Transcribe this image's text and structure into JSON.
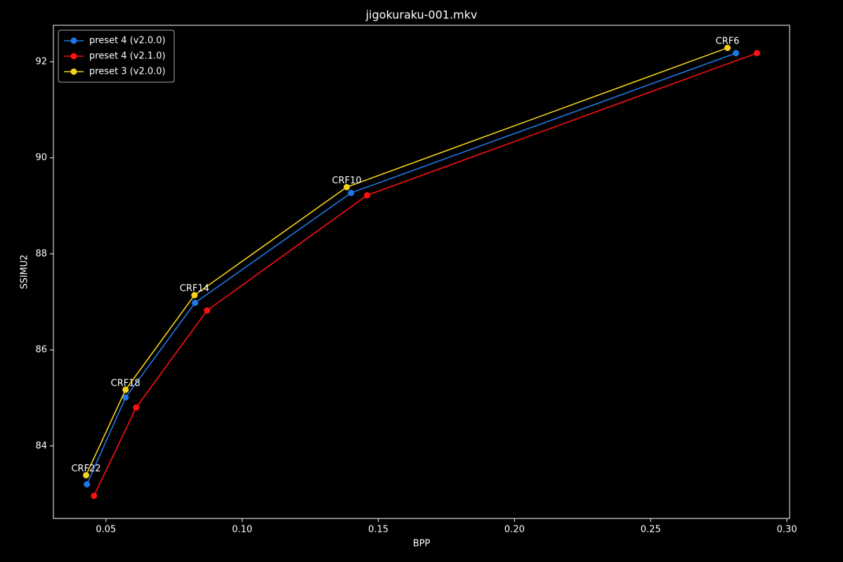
{
  "chart_data": {
    "type": "line",
    "title": "jigokuraku-001.mkv",
    "x_label": "BPP",
    "y_label": "SSIMU2",
    "series": [
      {
        "name": "preset 4 (v2.0.0)",
        "color": "#1f77e6",
        "x": [
          0.043,
          0.0572,
          0.0827,
          0.14,
          0.2813
        ],
        "values": [
          83.2,
          85.01,
          86.98,
          89.27,
          92.18
        ]
      },
      {
        "name": "preset 4 (v2.1.0)",
        "color": "#ff1010",
        "x": [
          0.0456,
          0.0611,
          0.0871,
          0.1459,
          0.289
        ],
        "values": [
          82.96,
          84.8,
          86.82,
          89.22,
          92.18
        ]
      },
      {
        "name": "preset 3 (v2.0.0)",
        "color": "#f5d21a",
        "x": [
          0.0427,
          0.0572,
          0.0825,
          0.1384,
          0.2782
        ],
        "values": [
          83.39,
          85.17,
          87.14,
          89.39,
          92.29
        ],
        "point_labels": [
          "CRF22",
          "CRF18",
          "CRF14",
          "CRF10",
          "CRF6"
        ]
      }
    ],
    "xlim": [
      0.0307,
      0.301
    ],
    "ylim": [
      82.49,
      92.76
    ],
    "xticks": [
      {
        "value": 0.05,
        "label": "0.05"
      },
      {
        "value": 0.1,
        "label": "0.10"
      },
      {
        "value": 0.15,
        "label": "0.15"
      },
      {
        "value": 0.2,
        "label": "0.20"
      },
      {
        "value": 0.25,
        "label": "0.25"
      },
      {
        "value": 0.3,
        "label": "0.30"
      }
    ],
    "yticks": [
      84,
      86,
      88,
      90,
      92
    ],
    "grid": false,
    "legend": "upper-left"
  }
}
